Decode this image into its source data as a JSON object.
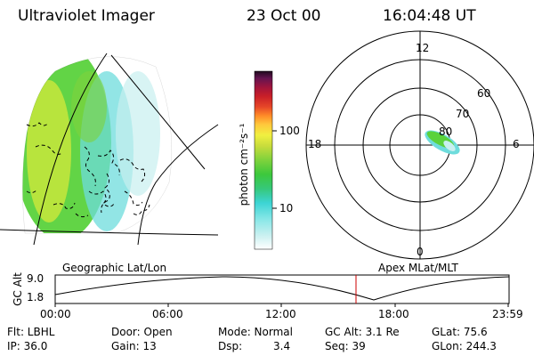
{
  "header": {
    "title": "Ultraviolet Imager",
    "date": "23 Oct 00",
    "time": "16:04:48 UT"
  },
  "colorbar": {
    "label": "photon cm⁻²s⁻¹",
    "ticks": [
      "100",
      "10"
    ],
    "tick_values": [
      100,
      10
    ],
    "scale": "log",
    "colors": [
      "#ffffff",
      "#c8f0f0",
      "#8ee8e8",
      "#3cd4d4",
      "#36c87a",
      "#3cc83c",
      "#7ed23c",
      "#c8dc3c",
      "#f0f040",
      "#ffc83c",
      "#ff8c28",
      "#e64628",
      "#c81e28",
      "#a0143c",
      "#641450",
      "#1e0a1e"
    ]
  },
  "left_map": {
    "label": "Geographic Lat/Lon",
    "colors": {
      "aurora_green": "#5ad23c",
      "aurora_yellow": "#c8e63c",
      "aurora_cyan": "#6edcdc",
      "coast": "#000000"
    }
  },
  "polar_plot": {
    "label": "Apex MLat/MLT",
    "mlt_labels": [
      "12",
      "18",
      "6",
      "0"
    ],
    "mlat_labels": [
      "60",
      "70",
      "80"
    ]
  },
  "timeline": {
    "ylabel": "GC Alt",
    "yticks": [
      "9.0",
      "1.8"
    ],
    "xticks": [
      "00:00",
      "06:00",
      "12:00",
      "18:00",
      "23:59"
    ],
    "marker_time": "16:04:48",
    "marker_color": "#cc0000"
  },
  "info": {
    "flt": "Flt: LBHL",
    "ip": "IP: 36.0",
    "door": "Door: Open",
    "gain": "Gain: 13",
    "mode": "Mode: Normal",
    "dsp_label": "Dsp:",
    "dsp_value": "3.4",
    "gc_alt": "GC Alt: 3.1 Re",
    "seq": "Seq: 39",
    "glat": "GLat: 75.6",
    "glon": "GLon: 244.3"
  }
}
